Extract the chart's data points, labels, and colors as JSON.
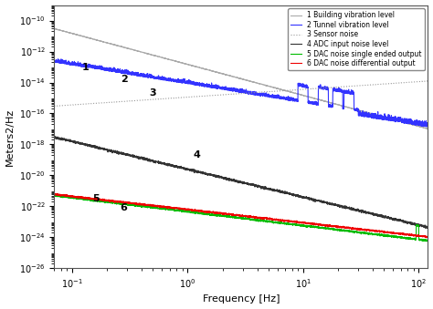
{
  "title": "",
  "xlabel": "Frequency [Hz]",
  "ylabel": "Meters2/Hz",
  "xlim": [
    0.07,
    120
  ],
  "ylim": [
    1e-26,
    1e-09
  ],
  "background_color": "#ffffff",
  "legend_entries": [
    "1 Building vibration level",
    "2 Tunnel vibration level",
    "3 Sensor noise",
    "4 ADC input noise level",
    "5 DAC noise single ended output",
    "6 DAC noise differential output"
  ],
  "curve_colors": [
    "#aaaaaa",
    "#3333ff",
    "#999999",
    "#333333",
    "#00bb00",
    "#ee0000"
  ],
  "curve_styles": [
    "-",
    "-",
    ":",
    "-",
    "-",
    "-"
  ],
  "curve_linewidths": [
    0.8,
    0.8,
    0.8,
    0.8,
    0.8,
    0.8
  ],
  "label_positions": [
    [
      0.13,
      -13.0,
      "1"
    ],
    [
      0.28,
      -13.8,
      "2"
    ],
    [
      0.5,
      -14.7,
      "3"
    ],
    [
      1.2,
      -18.7,
      "4"
    ],
    [
      0.16,
      -21.5,
      "5"
    ],
    [
      0.28,
      -22.1,
      "6"
    ]
  ]
}
